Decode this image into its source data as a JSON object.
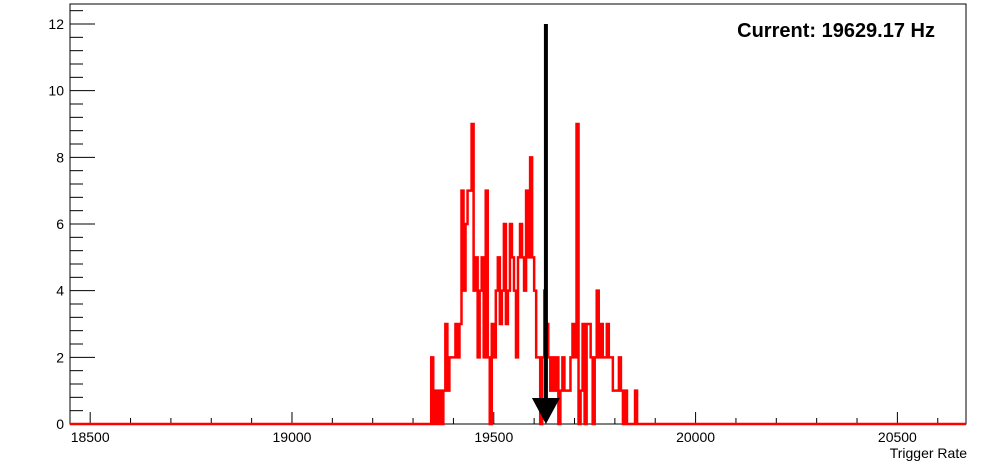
{
  "chart_data": {
    "type": "histogram",
    "title": "",
    "xlabel": "Trigger Rate",
    "ylabel": "",
    "xlim": [
      18450,
      20670
    ],
    "ylim": [
      0,
      12.6
    ],
    "x_ticks": [
      18500,
      19000,
      19500,
      20000,
      20500
    ],
    "y_ticks": [
      0,
      2,
      4,
      6,
      8,
      10,
      12
    ],
    "grid": false,
    "legend": "none",
    "series_color": "#ff0000",
    "bin_width": 5,
    "bins": [
      [
        19345,
        2
      ],
      [
        19350,
        0
      ],
      [
        19355,
        1
      ],
      [
        19360,
        0
      ],
      [
        19365,
        1
      ],
      [
        19370,
        0
      ],
      [
        19375,
        1
      ],
      [
        19380,
        3
      ],
      [
        19385,
        1
      ],
      [
        19390,
        2
      ],
      [
        19395,
        2
      ],
      [
        19400,
        2
      ],
      [
        19405,
        3
      ],
      [
        19410,
        2
      ],
      [
        19415,
        3
      ],
      [
        19420,
        7
      ],
      [
        19425,
        4
      ],
      [
        19430,
        6
      ],
      [
        19435,
        7
      ],
      [
        19440,
        7
      ],
      [
        19445,
        9
      ],
      [
        19450,
        4
      ],
      [
        19455,
        5
      ],
      [
        19460,
        2
      ],
      [
        19465,
        4
      ],
      [
        19470,
        5
      ],
      [
        19475,
        2
      ],
      [
        19480,
        7
      ],
      [
        19485,
        2
      ],
      [
        19490,
        0
      ],
      [
        19495,
        3
      ],
      [
        19500,
        2
      ],
      [
        19505,
        4
      ],
      [
        19510,
        5
      ],
      [
        19515,
        3
      ],
      [
        19520,
        4
      ],
      [
        19525,
        6
      ],
      [
        19530,
        3
      ],
      [
        19535,
        4
      ],
      [
        19540,
        6
      ],
      [
        19545,
        5
      ],
      [
        19550,
        4
      ],
      [
        19555,
        2
      ],
      [
        19560,
        5
      ],
      [
        19565,
        6
      ],
      [
        19570,
        5
      ],
      [
        19575,
        4
      ],
      [
        19580,
        7
      ],
      [
        19585,
        5
      ],
      [
        19590,
        8
      ],
      [
        19595,
        5
      ],
      [
        19600,
        4
      ],
      [
        19605,
        2
      ],
      [
        19610,
        2
      ],
      [
        19615,
        0
      ],
      [
        19620,
        2
      ],
      [
        19625,
        4
      ],
      [
        19630,
        3
      ],
      [
        19635,
        2
      ],
      [
        19640,
        1
      ],
      [
        19645,
        2
      ],
      [
        19650,
        1
      ],
      [
        19655,
        2
      ],
      [
        19660,
        0
      ],
      [
        19665,
        1
      ],
      [
        19670,
        2
      ],
      [
        19675,
        1
      ],
      [
        19680,
        1
      ],
      [
        19685,
        1
      ],
      [
        19690,
        2
      ],
      [
        19695,
        3
      ],
      [
        19700,
        2
      ],
      [
        19705,
        9
      ],
      [
        19710,
        0
      ],
      [
        19715,
        1
      ],
      [
        19720,
        3
      ],
      [
        19725,
        0
      ],
      [
        19730,
        3
      ],
      [
        19735,
        3
      ],
      [
        19740,
        2
      ],
      [
        19745,
        0
      ],
      [
        19750,
        2
      ],
      [
        19755,
        4
      ],
      [
        19760,
        2
      ],
      [
        19765,
        3
      ],
      [
        19770,
        2
      ],
      [
        19775,
        2
      ],
      [
        19780,
        3
      ],
      [
        19785,
        2
      ],
      [
        19790,
        2
      ],
      [
        19795,
        1
      ],
      [
        19800,
        1
      ],
      [
        19805,
        1
      ],
      [
        19810,
        2
      ],
      [
        19815,
        1
      ],
      [
        19820,
        0
      ],
      [
        19825,
        1
      ],
      [
        19830,
        0
      ],
      [
        19835,
        0
      ],
      [
        19840,
        0
      ],
      [
        19845,
        0
      ],
      [
        19850,
        1
      ],
      [
        19855,
        0
      ]
    ],
    "annotations": [
      {
        "text": "Current: 19629.17 Hz",
        "arrow_x": 19629.17,
        "arrow_from_y": 12,
        "arrow_to_y": 0
      }
    ]
  }
}
